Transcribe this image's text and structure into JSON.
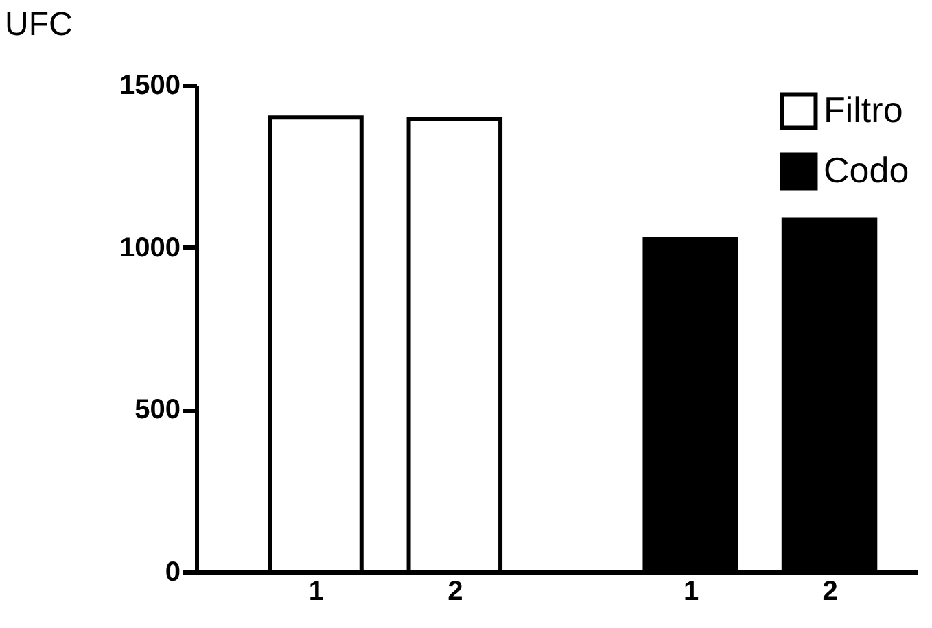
{
  "chart_data": {
    "type": "bar",
    "ylabel": "UFC",
    "categories": [
      "1",
      "2",
      "1",
      "2"
    ],
    "series": [
      {
        "name": "Filtro",
        "color": "#ffffff",
        "values": [
          1400,
          1395,
          null,
          null
        ]
      },
      {
        "name": "Codo",
        "color": "#000000",
        "values": [
          null,
          null,
          1025,
          1085
        ]
      }
    ],
    "ylim": [
      0,
      1500
    ],
    "yticks": [
      0,
      500,
      1000,
      1500
    ],
    "grid": false,
    "legend": "top right"
  }
}
